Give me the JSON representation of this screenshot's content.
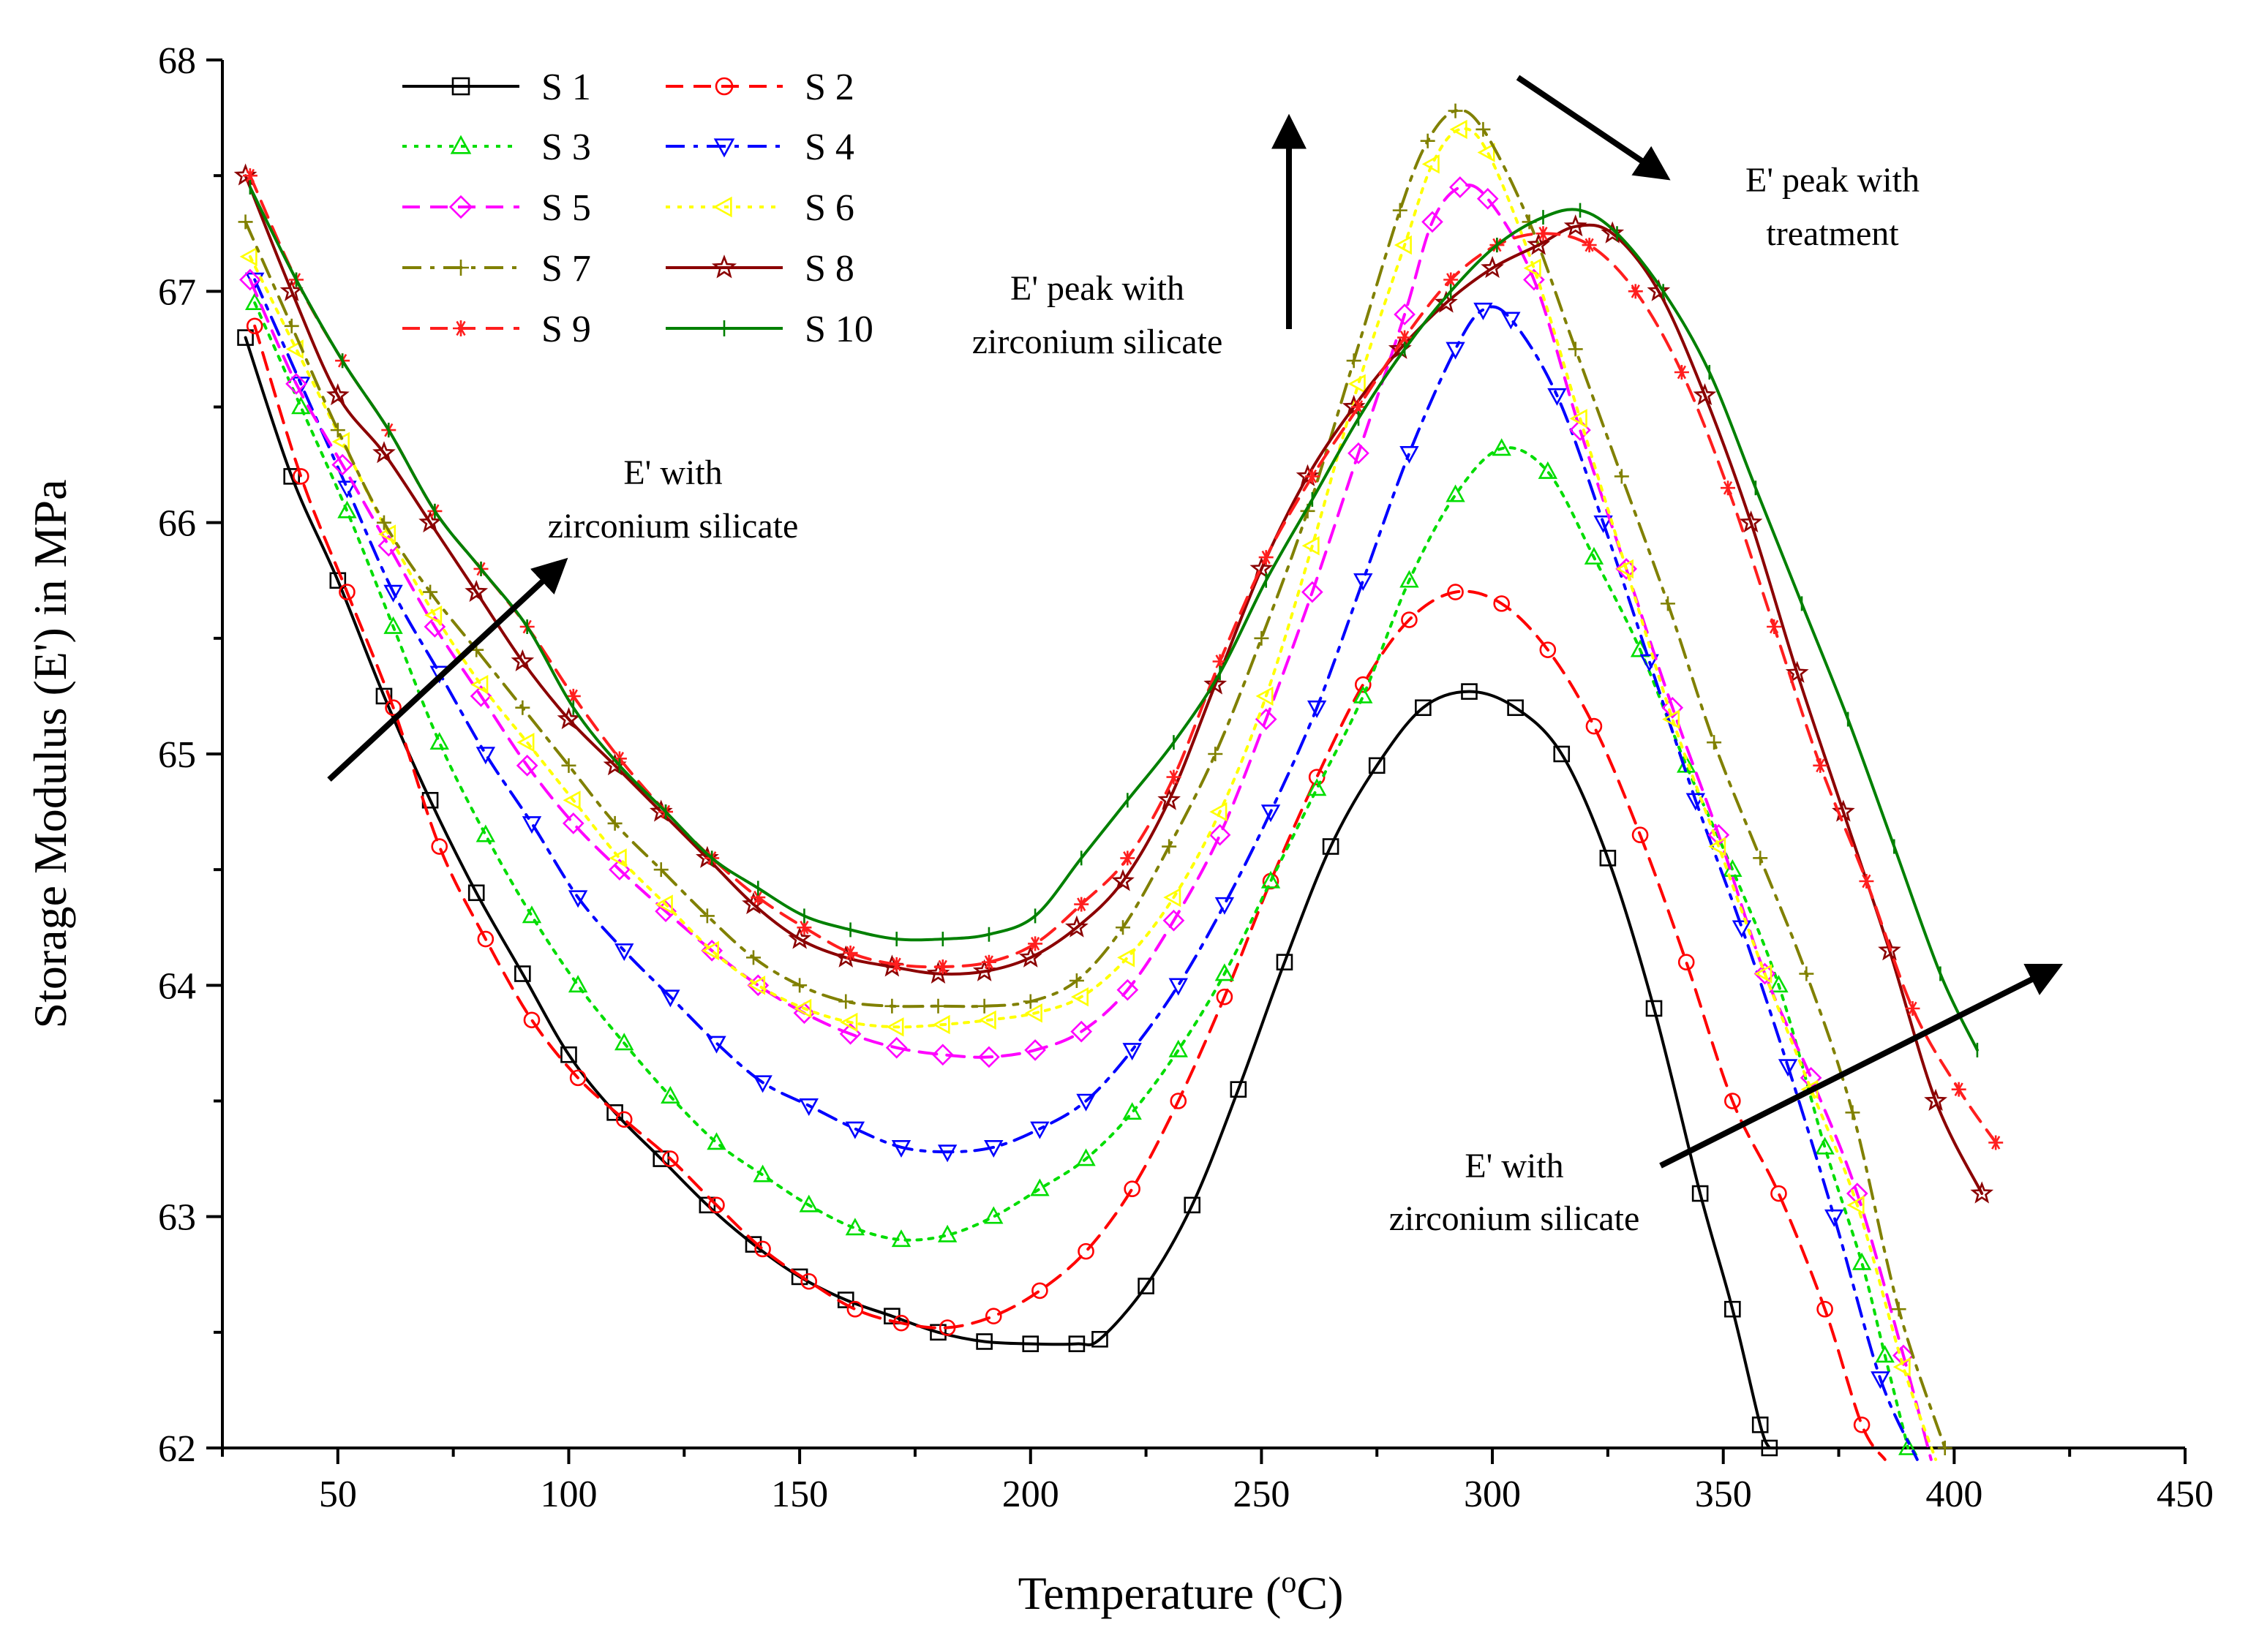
{
  "chart_data": {
    "type": "line",
    "title": "",
    "xlabel_main": "Temperature (",
    "xlabel_sup": "o",
    "xlabel_end": "C)",
    "ylabel": "Storage Modulus (E') in MPa",
    "xlim": [
      25,
      450
    ],
    "ylim": [
      62,
      68
    ],
    "x_ticks": [
      50,
      100,
      150,
      200,
      250,
      300,
      350,
      400,
      450
    ],
    "y_ticks": [
      62,
      63,
      64,
      65,
      66,
      67,
      68
    ],
    "legend_position": "top-left",
    "series": [
      {
        "name": "S 1",
        "color": "#000000",
        "marker": "square",
        "dash": "solid",
        "x": [
          30,
          40,
          50,
          60,
          70,
          80,
          90,
          100,
          110,
          120,
          130,
          140,
          150,
          160,
          170,
          180,
          190,
          200,
          210,
          215,
          225,
          235,
          245,
          255,
          265,
          275,
          285,
          295,
          305,
          315,
          325,
          335,
          345,
          352,
          358,
          360
        ],
        "y": [
          66.8,
          66.2,
          65.75,
          65.25,
          64.8,
          64.4,
          64.05,
          63.7,
          63.45,
          63.25,
          63.05,
          62.88,
          62.74,
          62.64,
          62.57,
          62.5,
          62.46,
          62.45,
          62.45,
          62.47,
          62.7,
          63.05,
          63.55,
          64.1,
          64.6,
          64.95,
          65.2,
          65.27,
          65.2,
          65.0,
          64.55,
          63.9,
          63.1,
          62.6,
          62.1,
          62.0
        ]
      },
      {
        "name": "S 2",
        "color": "#ff0000",
        "marker": "circle",
        "dash": "dash",
        "x": [
          32,
          42,
          52,
          62,
          72,
          82,
          92,
          102,
          112,
          122,
          132,
          142,
          152,
          162,
          172,
          182,
          192,
          202,
          212,
          222,
          232,
          242,
          252,
          262,
          272,
          282,
          292,
          302,
          312,
          322,
          332,
          342,
          352,
          362,
          372,
          380,
          385
        ],
        "y": [
          66.85,
          66.2,
          65.7,
          65.2,
          64.6,
          64.2,
          63.85,
          63.6,
          63.42,
          63.25,
          63.05,
          62.86,
          62.72,
          62.6,
          62.54,
          62.52,
          62.57,
          62.68,
          62.85,
          63.12,
          63.5,
          63.95,
          64.45,
          64.9,
          65.3,
          65.58,
          65.7,
          65.65,
          65.45,
          65.12,
          64.65,
          64.1,
          63.5,
          63.1,
          62.6,
          62.1,
          61.95
        ]
      },
      {
        "name": "S 3",
        "color": "#00dd00",
        "marker": "triangle-up",
        "dash": "dot",
        "x": [
          32,
          42,
          52,
          62,
          72,
          82,
          92,
          102,
          112,
          122,
          132,
          142,
          152,
          162,
          172,
          182,
          192,
          202,
          212,
          222,
          232,
          242,
          252,
          262,
          272,
          282,
          292,
          302,
          312,
          322,
          332,
          342,
          352,
          362,
          372,
          380,
          385,
          390
        ],
        "y": [
          66.95,
          66.5,
          66.05,
          65.55,
          65.05,
          64.65,
          64.3,
          64.0,
          63.75,
          63.52,
          63.32,
          63.18,
          63.05,
          62.95,
          62.9,
          62.92,
          63.0,
          63.12,
          63.25,
          63.45,
          63.72,
          64.05,
          64.45,
          64.85,
          65.25,
          65.75,
          66.12,
          66.32,
          66.22,
          65.85,
          65.45,
          64.95,
          64.5,
          64.0,
          63.3,
          62.8,
          62.4,
          62.0
        ]
      },
      {
        "name": "S 4",
        "color": "#0000ff",
        "marker": "triangle-down",
        "dash": "dashdot",
        "x": [
          32,
          42,
          52,
          62,
          72,
          82,
          92,
          102,
          112,
          122,
          132,
          142,
          152,
          162,
          172,
          182,
          192,
          202,
          212,
          222,
          232,
          242,
          252,
          262,
          272,
          282,
          292,
          298,
          304,
          314,
          324,
          334,
          344,
          354,
          364,
          374,
          384,
          392
        ],
        "y": [
          67.05,
          66.6,
          66.15,
          65.7,
          65.35,
          65.0,
          64.7,
          64.38,
          64.15,
          63.95,
          63.75,
          63.58,
          63.48,
          63.38,
          63.3,
          63.28,
          63.3,
          63.38,
          63.5,
          63.72,
          64.0,
          64.35,
          64.75,
          65.2,
          65.75,
          66.3,
          66.75,
          66.92,
          66.88,
          66.55,
          66.0,
          65.4,
          64.8,
          64.25,
          63.65,
          63.0,
          62.3,
          61.95
        ]
      },
      {
        "name": "S 5",
        "color": "#ff00ff",
        "marker": "diamond",
        "dash": "dash",
        "x": [
          31,
          41,
          51,
          61,
          71,
          81,
          91,
          101,
          111,
          121,
          131,
          141,
          151,
          161,
          171,
          181,
          191,
          201,
          211,
          221,
          231,
          241,
          251,
          261,
          271,
          281,
          287,
          293,
          299,
          309,
          319,
          329,
          339,
          349,
          359,
          369,
          379,
          389,
          395
        ],
        "y": [
          67.05,
          66.6,
          66.25,
          65.9,
          65.55,
          65.25,
          64.95,
          64.7,
          64.5,
          64.32,
          64.15,
          64.0,
          63.88,
          63.79,
          63.73,
          63.7,
          63.69,
          63.72,
          63.8,
          63.98,
          64.28,
          64.65,
          65.15,
          65.7,
          66.3,
          66.9,
          67.3,
          67.45,
          67.4,
          67.05,
          66.4,
          65.8,
          65.2,
          64.65,
          64.05,
          63.6,
          63.1,
          62.4,
          61.95
        ]
      },
      {
        "name": "S 6",
        "color": "#ffff00",
        "marker": "triangle-left",
        "dash": "dot",
        "x": [
          31,
          41,
          51,
          61,
          71,
          81,
          91,
          101,
          111,
          121,
          131,
          141,
          151,
          161,
          171,
          181,
          191,
          201,
          211,
          221,
          231,
          241,
          251,
          261,
          271,
          281,
          287,
          293,
          299,
          309,
          319,
          329,
          339,
          349,
          359,
          369,
          379,
          389,
          396
        ],
        "y": [
          67.15,
          66.75,
          66.35,
          65.95,
          65.6,
          65.3,
          65.05,
          64.8,
          64.55,
          64.35,
          64.15,
          64.0,
          63.9,
          63.84,
          63.82,
          63.83,
          63.85,
          63.88,
          63.95,
          64.12,
          64.38,
          64.75,
          65.25,
          65.9,
          66.6,
          67.2,
          67.55,
          67.7,
          67.6,
          67.1,
          66.45,
          65.8,
          65.15,
          64.6,
          64.05,
          63.55,
          63.05,
          62.35,
          61.95
        ]
      },
      {
        "name": "S 7",
        "color": "#808000",
        "marker": "plus",
        "dash": "dashdot",
        "x": [
          30,
          40,
          50,
          60,
          70,
          80,
          90,
          100,
          110,
          120,
          130,
          140,
          150,
          160,
          170,
          180,
          190,
          200,
          210,
          220,
          230,
          240,
          250,
          260,
          270,
          280,
          286,
          292,
          298,
          308,
          318,
          328,
          338,
          348,
          358,
          368,
          378,
          388,
          398
        ],
        "y": [
          67.3,
          66.85,
          66.4,
          66.0,
          65.7,
          65.45,
          65.2,
          64.95,
          64.7,
          64.5,
          64.3,
          64.12,
          64.0,
          63.93,
          63.91,
          63.91,
          63.91,
          63.93,
          64.02,
          64.25,
          64.6,
          65.0,
          65.5,
          66.05,
          66.7,
          67.35,
          67.65,
          67.78,
          67.7,
          67.3,
          66.75,
          66.2,
          65.65,
          65.05,
          64.55,
          64.05,
          63.45,
          62.6,
          62.0
        ]
      },
      {
        "name": "S 8",
        "color": "#8b0000",
        "marker": "star",
        "dash": "solid",
        "x": [
          30,
          40,
          50,
          60,
          70,
          80,
          90,
          100,
          110,
          120,
          130,
          140,
          150,
          160,
          170,
          180,
          190,
          200,
          210,
          220,
          230,
          240,
          250,
          260,
          270,
          280,
          290,
          300,
          310,
          318,
          326,
          336,
          346,
          356,
          366,
          376,
          386,
          396,
          406
        ],
        "y": [
          67.5,
          67.0,
          66.55,
          66.3,
          66.0,
          65.7,
          65.4,
          65.15,
          64.95,
          64.75,
          64.55,
          64.35,
          64.2,
          64.12,
          64.08,
          64.05,
          64.06,
          64.12,
          64.25,
          64.45,
          64.8,
          65.3,
          65.8,
          66.2,
          66.5,
          66.75,
          66.95,
          67.1,
          67.2,
          67.28,
          67.25,
          67.0,
          66.55,
          66.0,
          65.35,
          64.75,
          64.15,
          63.5,
          63.1
        ]
      },
      {
        "name": "S 9",
        "color": "#ff1e1e",
        "marker": "asterisk",
        "dash": "dash",
        "x": [
          31,
          41,
          51,
          61,
          71,
          81,
          91,
          101,
          111,
          121,
          131,
          141,
          151,
          161,
          171,
          181,
          191,
          201,
          211,
          221,
          231,
          241,
          251,
          261,
          271,
          281,
          291,
          301,
          311,
          321,
          331,
          341,
          351,
          361,
          371,
          381,
          391,
          401,
          409
        ],
        "y": [
          67.5,
          67.05,
          66.7,
          66.4,
          66.05,
          65.8,
          65.55,
          65.25,
          64.98,
          64.75,
          64.55,
          64.38,
          64.25,
          64.14,
          64.09,
          64.08,
          64.1,
          64.18,
          64.35,
          64.55,
          64.9,
          65.4,
          65.85,
          66.2,
          66.5,
          66.8,
          67.05,
          67.2,
          67.25,
          67.2,
          67.0,
          66.65,
          66.15,
          65.55,
          64.95,
          64.45,
          63.9,
          63.55,
          63.32
        ]
      },
      {
        "name": "S 10",
        "color": "#008000",
        "marker": "vbar",
        "dash": "solid",
        "x": [
          31,
          41,
          51,
          61,
          71,
          81,
          91,
          101,
          111,
          121,
          131,
          141,
          151,
          161,
          171,
          181,
          191,
          201,
          211,
          221,
          231,
          241,
          251,
          261,
          271,
          281,
          291,
          301,
          311,
          319,
          327,
          337,
          347,
          357,
          367,
          377,
          387,
          397,
          405
        ],
        "y": [
          67.45,
          67.05,
          66.7,
          66.4,
          66.05,
          65.8,
          65.55,
          65.2,
          64.95,
          64.75,
          64.55,
          64.42,
          64.3,
          64.24,
          64.2,
          64.2,
          64.22,
          64.3,
          64.55,
          64.8,
          65.05,
          65.35,
          65.75,
          66.1,
          66.45,
          66.75,
          67.0,
          67.2,
          67.32,
          67.35,
          67.25,
          67.0,
          66.65,
          66.15,
          65.65,
          65.15,
          64.6,
          64.05,
          63.72
        ]
      }
    ],
    "annotations": [
      {
        "lines": [
          "E' with",
          "zirconium silicate"
        ]
      },
      {
        "lines": [
          "E' peak with",
          "zirconium silicate"
        ]
      },
      {
        "lines": [
          "E' peak with",
          "treatment"
        ]
      },
      {
        "lines": [
          "E' with",
          "zirconium silicate"
        ]
      }
    ]
  }
}
